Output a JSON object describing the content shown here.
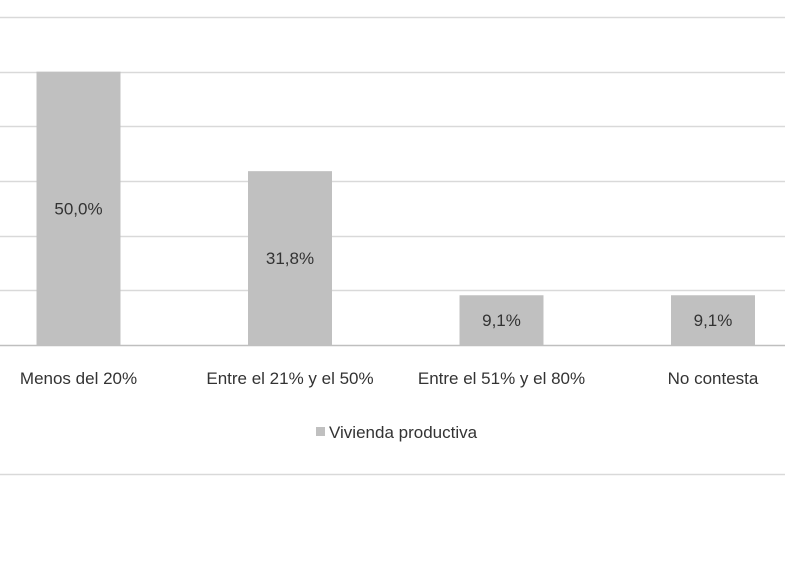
{
  "chart_data": {
    "type": "bar",
    "categories": [
      "Menos del 20%",
      "Entre el 21% y el 50%",
      "Entre el 51% y el 80%",
      "No contesta"
    ],
    "series": [
      {
        "name": "Vivienda productiva",
        "values": [
          50.0,
          31.8,
          9.1,
          9.1
        ]
      }
    ],
    "data_labels": [
      "50,0%",
      "31,8%",
      "9,1%",
      "9,1%"
    ],
    "ylim": [
      0,
      60
    ],
    "grid": true,
    "legend_position": "bottom",
    "colors": {
      "bar": "#c0c0c0",
      "grid": "#d9d9d9",
      "axis": "#bfbfbf"
    }
  }
}
